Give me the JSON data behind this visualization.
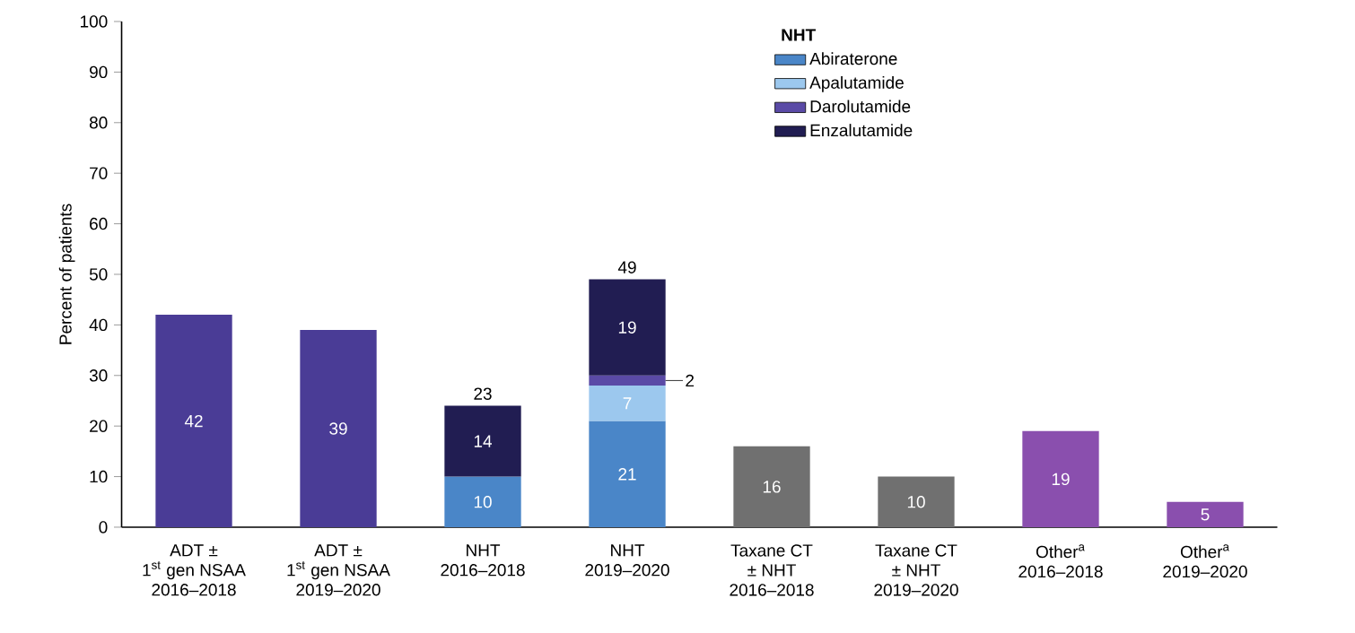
{
  "chart_data": {
    "type": "bar",
    "stacked": true,
    "data_labels": true,
    "ylabel": "Percent of patients",
    "legend_title": "NHT",
    "legend": "top right",
    "categories": [
      "ADT ±\n1$^{st}$ gen NSAA\n2016–2018",
      "ADT ±\n1$^{st}$ gen NSAA\n2019–2020",
      "NHT\n2016–2018",
      "NHT\n2019–2020",
      "Taxane CT\n± NHT\n2016–2018",
      "Taxane CT\n± NHT\n2019–2020",
      "Other$^{a}$\n2016–2018",
      "Other$^{a}$\n2019–2020"
    ],
    "ylim": [
      0,
      100
    ],
    "yticks": [
      0,
      10,
      20,
      30,
      40,
      50,
      60,
      70,
      80,
      90,
      100
    ],
    "totals": [
      null,
      null,
      "23",
      "49",
      null,
      null,
      null,
      null
    ],
    "series": [
      {
        "color": "#4a3c96",
        "values": [
          42,
          39,
          null,
          null,
          null,
          null,
          null,
          null
        ]
      },
      {
        "name": "Abiraterone",
        "color": "#4a86c8",
        "values": [
          null,
          null,
          10,
          21,
          null,
          null,
          null,
          null
        ]
      },
      {
        "name": "Apalutamide",
        "color": "#9cc8ee",
        "values": [
          null,
          null,
          null,
          7,
          null,
          null,
          null,
          null
        ]
      },
      {
        "name": "Darolutamide",
        "color": "#5a4aa6",
        "values": [
          null,
          null,
          null,
          2,
          null,
          null,
          null,
          null
        ]
      },
      {
        "name": "Enzalutamide",
        "color": "#211d52",
        "values": [
          null,
          null,
          14,
          19,
          null,
          null,
          null,
          null
        ]
      },
      {
        "color": "#707070",
        "values": [
          null,
          null,
          null,
          null,
          16,
          10,
          null,
          null
        ]
      },
      {
        "color": "#8a4fae",
        "values": [
          null,
          null,
          null,
          null,
          null,
          null,
          19,
          5
        ]
      }
    ]
  }
}
